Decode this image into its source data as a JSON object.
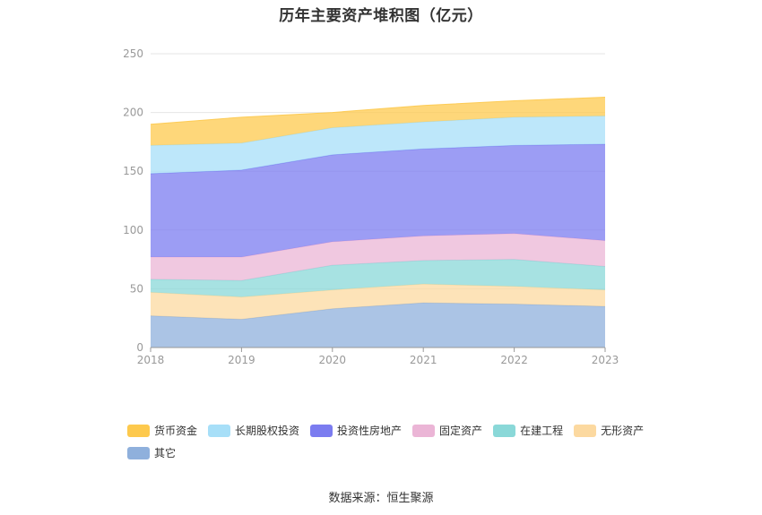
{
  "chart_data": {
    "type": "area",
    "stacked": true,
    "title": "历年主要资产堆积图（亿元）",
    "x": [
      "2018",
      "2019",
      "2020",
      "2021",
      "2022",
      "2023"
    ],
    "ylim": [
      0,
      250
    ],
    "yticks": [
      0,
      50,
      100,
      150,
      200,
      250
    ],
    "grid": true,
    "legend_position": "bottom-left",
    "series": [
      {
        "name": "其它",
        "color": "#8fb0dc",
        "values": [
          27,
          24,
          33,
          38,
          37,
          35
        ]
      },
      {
        "name": "无形资产",
        "color": "#fcd9a0",
        "values": [
          20,
          19,
          16,
          16,
          15,
          14
        ]
      },
      {
        "name": "在建工程",
        "color": "#8ad8d8",
        "values": [
          11,
          14,
          21,
          20,
          23,
          20
        ]
      },
      {
        "name": "固定资产",
        "color": "#ebb5d6",
        "values": [
          19,
          20,
          20,
          21,
          22,
          22
        ]
      },
      {
        "name": "投资性房地产",
        "color": "#7b7cf0",
        "values": [
          71,
          74,
          74,
          74,
          75,
          82
        ]
      },
      {
        "name": "长期股权投资",
        "color": "#a7dff8",
        "values": [
          24,
          23,
          23,
          23,
          24,
          24
        ]
      },
      {
        "name": "货币资金",
        "color": "#fdc94d",
        "values": [
          18,
          22,
          13,
          14,
          14,
          16
        ]
      }
    ]
  },
  "legend_order": [
    "货币资金",
    "长期股权投资",
    "投资性房地产",
    "固定资产",
    "在建工程",
    "无形资产",
    "其它"
  ],
  "source_text": "数据来源：恒生聚源"
}
